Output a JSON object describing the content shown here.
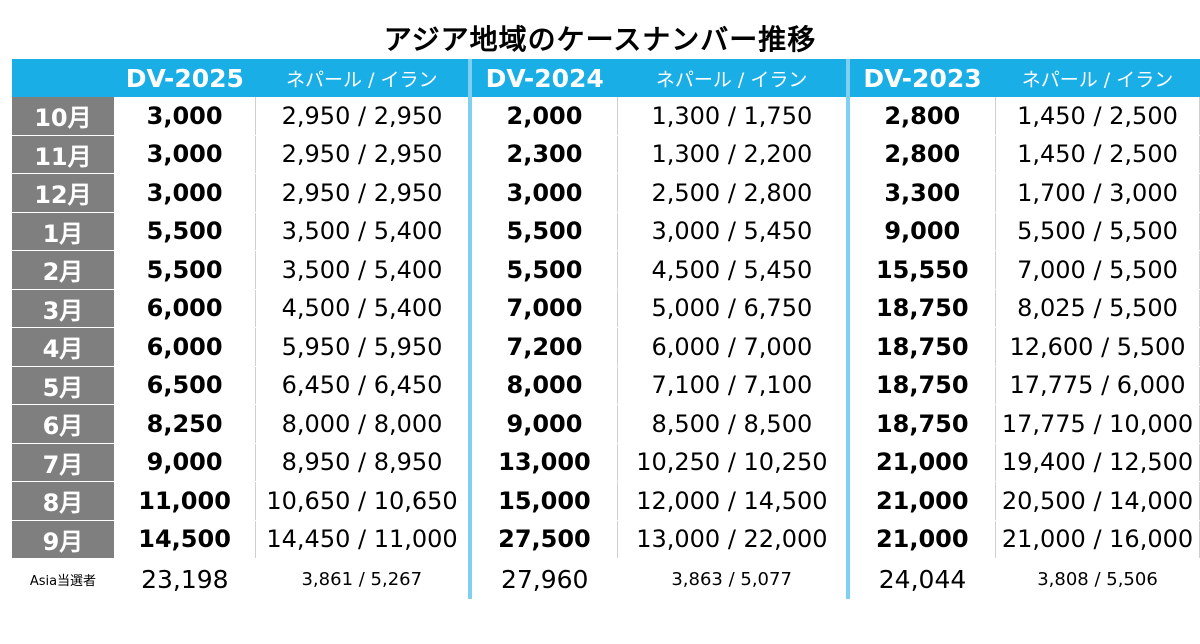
{
  "title": "アジア地域のケースナンバー推移",
  "header": {
    "groups": [
      {
        "label": "DV-2025",
        "sub": "ネパール / イラン"
      },
      {
        "label": "DV-2024",
        "sub": "ネパール / イラン"
      },
      {
        "label": "DV-2023",
        "sub": "ネパール / イラン"
      }
    ]
  },
  "rows": [
    {
      "month": "10月",
      "d25": "3,000",
      "d25s": "2,950 / 2,950",
      "d24": "2,000",
      "d24s": "1,300 / 1,750",
      "d23": "2,800",
      "d23s": "1,450 / 2,500"
    },
    {
      "month": "11月",
      "d25": "3,000",
      "d25s": "2,950 / 2,950",
      "d24": "2,300",
      "d24s": "1,300 / 2,200",
      "d23": "2,800",
      "d23s": "1,450 / 2,500"
    },
    {
      "month": "12月",
      "d25": "3,000",
      "d25s": "2,950 / 2,950",
      "d24": "3,000",
      "d24s": "2,500 / 2,800",
      "d23": "3,300",
      "d23s": "1,700 / 3,000"
    },
    {
      "month": "1月",
      "d25": "5,500",
      "d25s": "3,500 / 5,400",
      "d24": "5,500",
      "d24s": "3,000 / 5,450",
      "d23": "9,000",
      "d23s": "5,500 / 5,500"
    },
    {
      "month": "2月",
      "d25": "5,500",
      "d25s": "3,500 / 5,400",
      "d24": "5,500",
      "d24s": "4,500 / 5,450",
      "d23": "15,550",
      "d23s": "7,000 / 5,500"
    },
    {
      "month": "3月",
      "d25": "6,000",
      "d25s": "4,500 / 5,400",
      "d24": "7,000",
      "d24s": "5,000 / 6,750",
      "d23": "18,750",
      "d23s": "8,025 / 5,500"
    },
    {
      "month": "4月",
      "d25": "6,000",
      "d25s": "5,950 / 5,950",
      "d24": "7,200",
      "d24s": "6,000 / 7,000",
      "d23": "18,750",
      "d23s": "12,600 / 5,500"
    },
    {
      "month": "5月",
      "d25": "6,500",
      "d25s": "6,450 / 6,450",
      "d24": "8,000",
      "d24s": "7,100 / 7,100",
      "d23": "18,750",
      "d23s": "17,775 / 6,000"
    },
    {
      "month": "6月",
      "d25": "8,250",
      "d25s": "8,000 / 8,000",
      "d24": "9,000",
      "d24s": "8,500 / 8,500",
      "d23": "18,750",
      "d23s": "17,775 / 10,000"
    },
    {
      "month": "7月",
      "d25": "9,000",
      "d25s": "8,950 / 8,950",
      "d24": "13,000",
      "d24s": "10,250 / 10,250",
      "d23": "21,000",
      "d23s": "19,400 / 12,500"
    },
    {
      "month": "8月",
      "d25": "11,000",
      "d25s": "10,650 / 10,650",
      "d24": "15,000",
      "d24s": "12,000 / 14,500",
      "d23": "21,000",
      "d23s": "20,500 / 14,000"
    },
    {
      "month": "9月",
      "d25": "14,500",
      "d25s": "14,450 / 11,000",
      "d24": "27,500",
      "d24s": "13,000 / 22,000",
      "d23": "21,000",
      "d23s": "21,000 / 16,000"
    }
  ],
  "footer": {
    "label": "Asia当選者",
    "d25": "23,198",
    "d25s": "3,861 / 5,267",
    "d24": "27,960",
    "d24s": "3,863 / 5,077",
    "d23": "24,044",
    "d23s": "3,808 / 5,506"
  },
  "colors": {
    "header_bg": "#1aaee6",
    "month_bg": "#7f7f7f",
    "group_divider": "#7fd0f0"
  }
}
